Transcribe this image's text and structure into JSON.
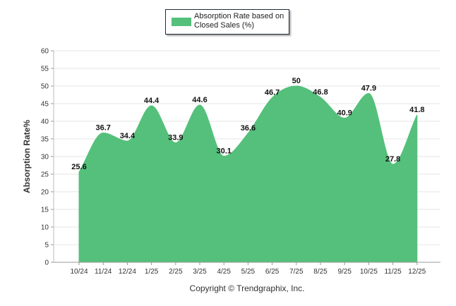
{
  "legend": {
    "label": "Absorption Rate based on Closed Sales (%)",
    "color": "#55c07b"
  },
  "footer": {
    "copyright": "Copyright © Trendgraphix, Inc."
  },
  "chart_data": {
    "type": "area",
    "title": "",
    "xlabel": "",
    "ylabel": "Absorption Rate%",
    "ylim": [
      0,
      60
    ],
    "yticks": [
      0,
      5,
      10,
      15,
      20,
      25,
      30,
      35,
      40,
      45,
      50,
      55,
      60
    ],
    "grid": true,
    "legend_position": "top-center",
    "categories": [
      "10/24",
      "11/24",
      "12/24",
      "1/25",
      "2/25",
      "3/25",
      "4/25",
      "5/25",
      "6/25",
      "7/25",
      "8/25",
      "9/25",
      "10/25",
      "11/25",
      "12/25"
    ],
    "series": [
      {
        "name": "Absorption Rate based on Closed Sales (%)",
        "values": [
          25.6,
          36.7,
          34.4,
          44.4,
          33.9,
          44.6,
          30.1,
          36.6,
          46.7,
          50,
          46.8,
          40.9,
          47.9,
          27.8,
          41.8
        ],
        "labels": [
          "25.6",
          "36.7",
          "34.4",
          "44.4",
          "33.9",
          "44.6",
          "30.1",
          "36.6",
          "46.7",
          "50",
          "46.8",
          "40.9",
          "47.9",
          "27.8",
          "41.8"
        ],
        "color": "#55c07b"
      }
    ]
  }
}
